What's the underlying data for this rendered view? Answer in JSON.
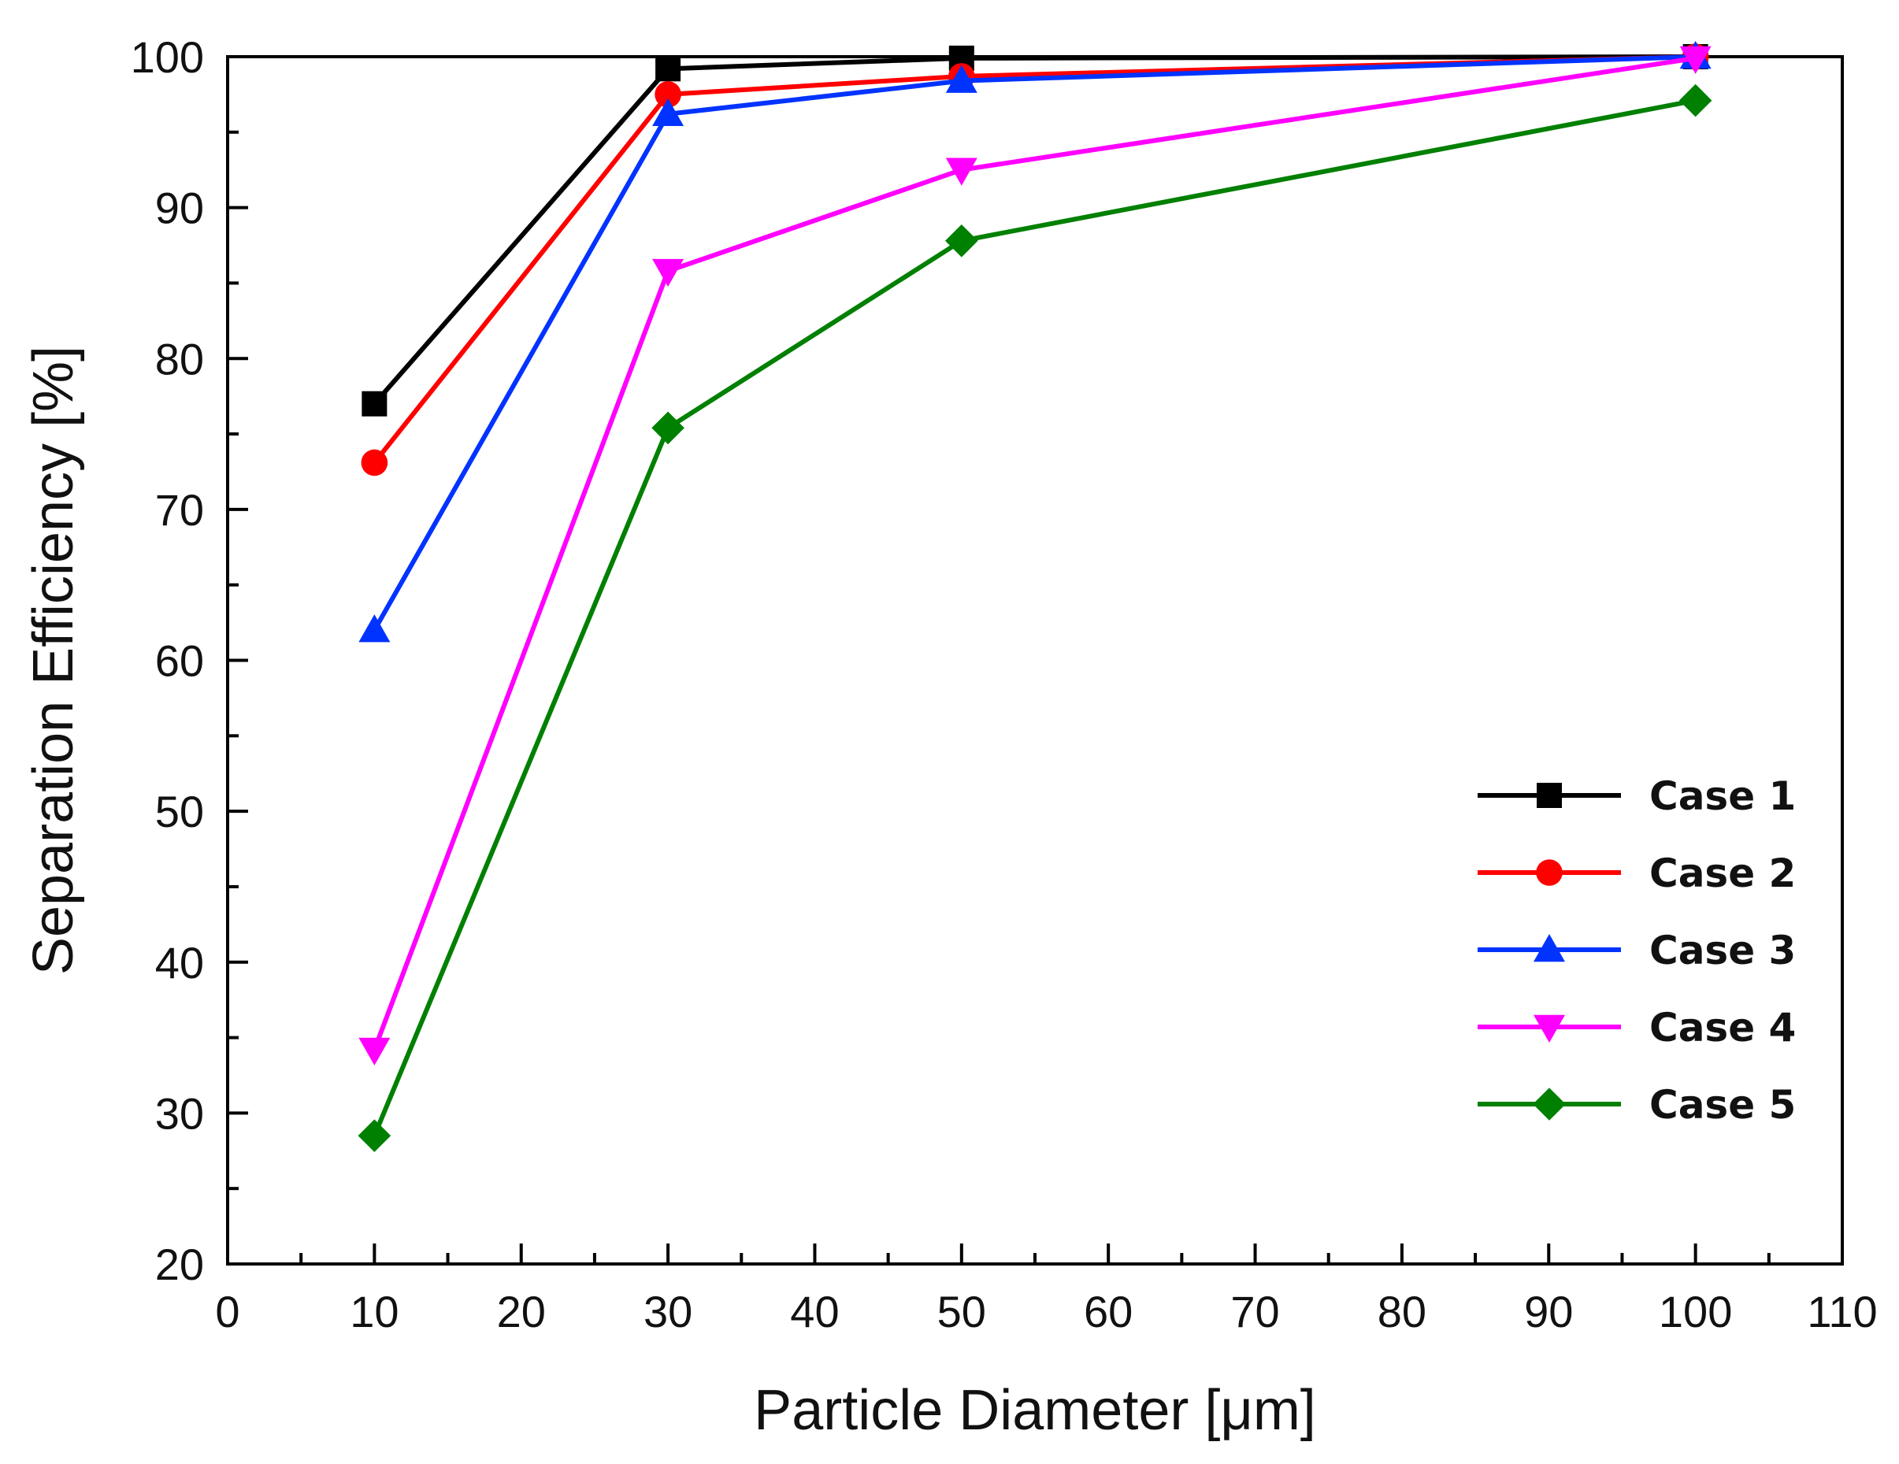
{
  "chart_data": {
    "type": "line",
    "title": "",
    "xlabel": "Particle Diameter [μm]",
    "ylabel": "Separation Efficiency [%]",
    "xlim": [
      0,
      110
    ],
    "ylim": [
      20,
      100
    ],
    "x_ticks": [
      "0",
      "10",
      "20",
      "30",
      "40",
      "50",
      "60",
      "70",
      "80",
      "90",
      "100",
      "110"
    ],
    "y_ticks": [
      "20",
      "30",
      "40",
      "50",
      "60",
      "70",
      "80",
      "90",
      "100"
    ],
    "x": [
      10,
      30,
      50,
      100
    ],
    "legend_position": "lower-right",
    "series": [
      {
        "name": "Case 1",
        "values": [
          77.0,
          99.2,
          99.9,
          100.0
        ],
        "color": "#000000",
        "marker": "square"
      },
      {
        "name": "Case 2",
        "values": [
          73.1,
          97.5,
          98.7,
          100.0
        ],
        "color": "#ff0000",
        "marker": "circle"
      },
      {
        "name": "Case 3",
        "values": [
          62.0,
          96.2,
          98.4,
          100.0
        ],
        "color": "#0033ff",
        "marker": "triangle-up"
      },
      {
        "name": "Case 4",
        "values": [
          34.2,
          85.8,
          92.5,
          99.9
        ],
        "color": "#ff00ff",
        "marker": "triangle-down"
      },
      {
        "name": "Case 5",
        "values": [
          28.5,
          75.4,
          87.8,
          97.1
        ],
        "color": "#008000",
        "marker": "diamond"
      }
    ]
  }
}
